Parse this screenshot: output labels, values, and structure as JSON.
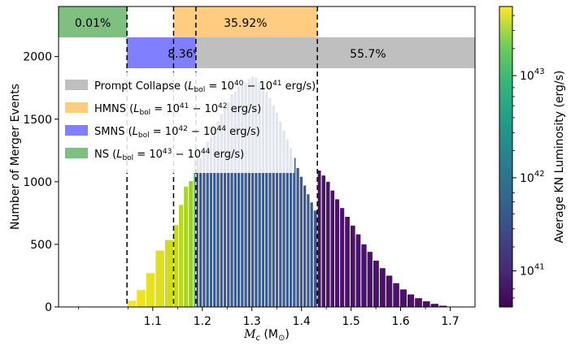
{
  "chart_data": {
    "type": "bar",
    "xlabel_main": "M",
    "xlabel_sub": "c",
    "xlabel_unit_open": " (M",
    "xlabel_unit_sub": "⊙",
    "xlabel_unit_close": ")",
    "ylabel": "Number of Merger Events",
    "colorbar_label": "Average KN Luminosity (erg/s)",
    "ylim": [
      0,
      2400
    ],
    "yticks": [
      0,
      500,
      1000,
      1500,
      2000
    ],
    "xticks": [
      {
        "value": 1.1,
        "label": "1.1"
      },
      {
        "value": 1.2,
        "label": "1.2"
      },
      {
        "value": 1.3,
        "label": "1.3"
      },
      {
        "value": 1.4,
        "label": "1.4"
      },
      {
        "value": 1.5,
        "label": "1.5"
      },
      {
        "value": 1.6,
        "label": "1.6"
      },
      {
        "value": 1.7,
        "label": "1.7"
      }
    ],
    "colorbar_ticks": [
      {
        "mant": "10",
        "exp": "43",
        "frac": 0.77
      },
      {
        "mant": "10",
        "exp": "42",
        "frac": 0.43
      },
      {
        "mant": "10",
        "exp": "41",
        "frac": 0.12
      }
    ],
    "thresholds": [
      1.048,
      1.142,
      1.187,
      1.432
    ],
    "legend": [
      {
        "name": "Prompt Collapse",
        "range": "10^{40} − 10^{41}",
        "color": "#bfbfbf"
      },
      {
        "name": "HMNS",
        "range": "10^{41} − 10^{42}",
        "color": "#ffcc80"
      },
      {
        "name": "SMNS",
        "range": "10^{42} − 10^{44}",
        "color": "#8080ff"
      },
      {
        "name": "NS",
        "range": "10^{43} − 10^{44}",
        "color": "#7fbf7f"
      }
    ],
    "legend_unit": "erg/s",
    "legend_sub": "bol",
    "legend_symbol": "L",
    "bands_top": [
      {
        "label": "0.01%",
        "x0": 0.91,
        "x1": 1.048,
        "color": "#7fbf7f"
      },
      {
        "label": "35.92%",
        "x0": 1.142,
        "x1": 1.432,
        "color": "#ffcc80"
      }
    ],
    "bands_bottom": [
      {
        "label": "8.36%",
        "x0": 1.048,
        "x1": 1.187,
        "color": "#8080ff"
      },
      {
        "label": "55.7%",
        "x0": 1.187,
        "x1": 1.75,
        "color": "#bfbfbf"
      }
    ],
    "bars": [
      {
        "x0": 1.048,
        "x1": 1.067,
        "value": 50,
        "color": "#f7e620"
      },
      {
        "x0": 1.067,
        "x1": 1.086,
        "value": 135,
        "color": "#f0e31e"
      },
      {
        "x0": 1.086,
        "x1": 1.105,
        "value": 270,
        "color": "#e6e01d"
      },
      {
        "x0": 1.105,
        "x1": 1.124,
        "value": 450,
        "color": "#dde01c"
      },
      {
        "x0": 1.124,
        "x1": 1.142,
        "value": 535,
        "color": "#d0dc1c"
      },
      {
        "x0": 1.142,
        "x1": 1.152,
        "value": 655,
        "color": "#c5db1e"
      },
      {
        "x0": 1.152,
        "x1": 1.162,
        "value": 815,
        "color": "#b7d826"
      },
      {
        "x0": 1.162,
        "x1": 1.172,
        "value": 960,
        "color": "#a9d42c"
      },
      {
        "x0": 1.172,
        "x1": 1.182,
        "value": 1005,
        "color": "#97cf34"
      },
      {
        "x0": 1.182,
        "x1": 1.187,
        "value": 1185,
        "color": "#4bb663"
      },
      {
        "x0": 1.187,
        "x1": 1.193,
        "value": 1190,
        "color": "#3f5f90"
      },
      {
        "x0": 1.193,
        "x1": 1.2,
        "value": 1190,
        "color": "#3b5a8e"
      },
      {
        "x0": 1.2,
        "x1": 1.207,
        "value": 1280,
        "color": "#3b5a8e"
      },
      {
        "x0": 1.207,
        "x1": 1.214,
        "value": 1320,
        "color": "#3b5a8e"
      },
      {
        "x0": 1.214,
        "x1": 1.221,
        "value": 1360,
        "color": "#3b5a8e"
      },
      {
        "x0": 1.221,
        "x1": 1.228,
        "value": 1420,
        "color": "#3b5a8e"
      },
      {
        "x0": 1.228,
        "x1": 1.235,
        "value": 1480,
        "color": "#3b5a8e"
      },
      {
        "x0": 1.235,
        "x1": 1.242,
        "value": 1540,
        "color": "#3b5a8e"
      },
      {
        "x0": 1.242,
        "x1": 1.249,
        "value": 1600,
        "color": "#3b5a8e"
      },
      {
        "x0": 1.249,
        "x1": 1.256,
        "value": 1640,
        "color": "#3b5a8e"
      },
      {
        "x0": 1.256,
        "x1": 1.263,
        "value": 1700,
        "color": "#3b5a8e"
      },
      {
        "x0": 1.263,
        "x1": 1.27,
        "value": 1720,
        "color": "#3b5a8e"
      },
      {
        "x0": 1.27,
        "x1": 1.277,
        "value": 1760,
        "color": "#3b5a8e"
      },
      {
        "x0": 1.277,
        "x1": 1.284,
        "value": 1780,
        "color": "#3b5a8e"
      },
      {
        "x0": 1.284,
        "x1": 1.291,
        "value": 1790,
        "color": "#3b5a8e"
      },
      {
        "x0": 1.291,
        "x1": 1.298,
        "value": 1820,
        "color": "#3b5a8e"
      },
      {
        "x0": 1.298,
        "x1": 1.305,
        "value": 1840,
        "color": "#3b5a8e"
      },
      {
        "x0": 1.305,
        "x1": 1.312,
        "value": 1830,
        "color": "#3b5a8e"
      },
      {
        "x0": 1.312,
        "x1": 1.319,
        "value": 1800,
        "color": "#3b5a8e"
      },
      {
        "x0": 1.319,
        "x1": 1.326,
        "value": 1760,
        "color": "#3b5a8e"
      },
      {
        "x0": 1.326,
        "x1": 1.333,
        "value": 1720,
        "color": "#3b5a8e"
      },
      {
        "x0": 1.333,
        "x1": 1.34,
        "value": 1670,
        "color": "#3b5a8e"
      },
      {
        "x0": 1.34,
        "x1": 1.347,
        "value": 1610,
        "color": "#3b5a8e"
      },
      {
        "x0": 1.347,
        "x1": 1.354,
        "value": 1550,
        "color": "#3b5a8e"
      },
      {
        "x0": 1.354,
        "x1": 1.361,
        "value": 1480,
        "color": "#3b5a8e"
      },
      {
        "x0": 1.361,
        "x1": 1.368,
        "value": 1410,
        "color": "#3b5a8e"
      },
      {
        "x0": 1.368,
        "x1": 1.375,
        "value": 1340,
        "color": "#3b5a8e"
      },
      {
        "x0": 1.375,
        "x1": 1.382,
        "value": 1270,
        "color": "#3b5a8e"
      },
      {
        "x0": 1.382,
        "x1": 1.389,
        "value": 1190,
        "color": "#3b5a8e"
      },
      {
        "x0": 1.389,
        "x1": 1.396,
        "value": 1110,
        "color": "#3b5a8e"
      },
      {
        "x0": 1.396,
        "x1": 1.403,
        "value": 1040,
        "color": "#3b5a8e"
      },
      {
        "x0": 1.403,
        "x1": 1.41,
        "value": 970,
        "color": "#3b5a8e"
      },
      {
        "x0": 1.41,
        "x1": 1.417,
        "value": 900,
        "color": "#3b5a8e"
      },
      {
        "x0": 1.417,
        "x1": 1.424,
        "value": 835,
        "color": "#3b5a8e"
      },
      {
        "x0": 1.424,
        "x1": 1.432,
        "value": 770,
        "color": "#3b5a8e"
      },
      {
        "x0": 1.432,
        "x1": 1.44,
        "value": 1090,
        "color": "#4a1368"
      },
      {
        "x0": 1.44,
        "x1": 1.449,
        "value": 1050,
        "color": "#4a1368"
      },
      {
        "x0": 1.449,
        "x1": 1.458,
        "value": 1000,
        "color": "#4a1368"
      },
      {
        "x0": 1.458,
        "x1": 1.467,
        "value": 930,
        "color": "#4a1368"
      },
      {
        "x0": 1.467,
        "x1": 1.477,
        "value": 860,
        "color": "#4a1368"
      },
      {
        "x0": 1.477,
        "x1": 1.487,
        "value": 790,
        "color": "#4a1368"
      },
      {
        "x0": 1.487,
        "x1": 1.498,
        "value": 720,
        "color": "#4a1368"
      },
      {
        "x0": 1.498,
        "x1": 1.509,
        "value": 650,
        "color": "#4a1368"
      },
      {
        "x0": 1.509,
        "x1": 1.52,
        "value": 580,
        "color": "#4a1368"
      },
      {
        "x0": 1.52,
        "x1": 1.532,
        "value": 500,
        "color": "#4a1368"
      },
      {
        "x0": 1.532,
        "x1": 1.544,
        "value": 440,
        "color": "#4a1368"
      },
      {
        "x0": 1.544,
        "x1": 1.557,
        "value": 370,
        "color": "#4a1368"
      },
      {
        "x0": 1.557,
        "x1": 1.57,
        "value": 310,
        "color": "#4a1368"
      },
      {
        "x0": 1.57,
        "x1": 1.584,
        "value": 250,
        "color": "#4a1368"
      },
      {
        "x0": 1.584,
        "x1": 1.598,
        "value": 190,
        "color": "#4a1368"
      },
      {
        "x0": 1.598,
        "x1": 1.613,
        "value": 140,
        "color": "#4a1368"
      },
      {
        "x0": 1.613,
        "x1": 1.628,
        "value": 100,
        "color": "#4a1368"
      },
      {
        "x0": 1.628,
        "x1": 1.644,
        "value": 70,
        "color": "#4a1368"
      },
      {
        "x0": 1.644,
        "x1": 1.66,
        "value": 45,
        "color": "#4a1368"
      },
      {
        "x0": 1.66,
        "x1": 1.677,
        "value": 25,
        "color": "#4a1368"
      },
      {
        "x0": 1.677,
        "x1": 1.694,
        "value": 10,
        "color": "#4a1368"
      }
    ]
  }
}
